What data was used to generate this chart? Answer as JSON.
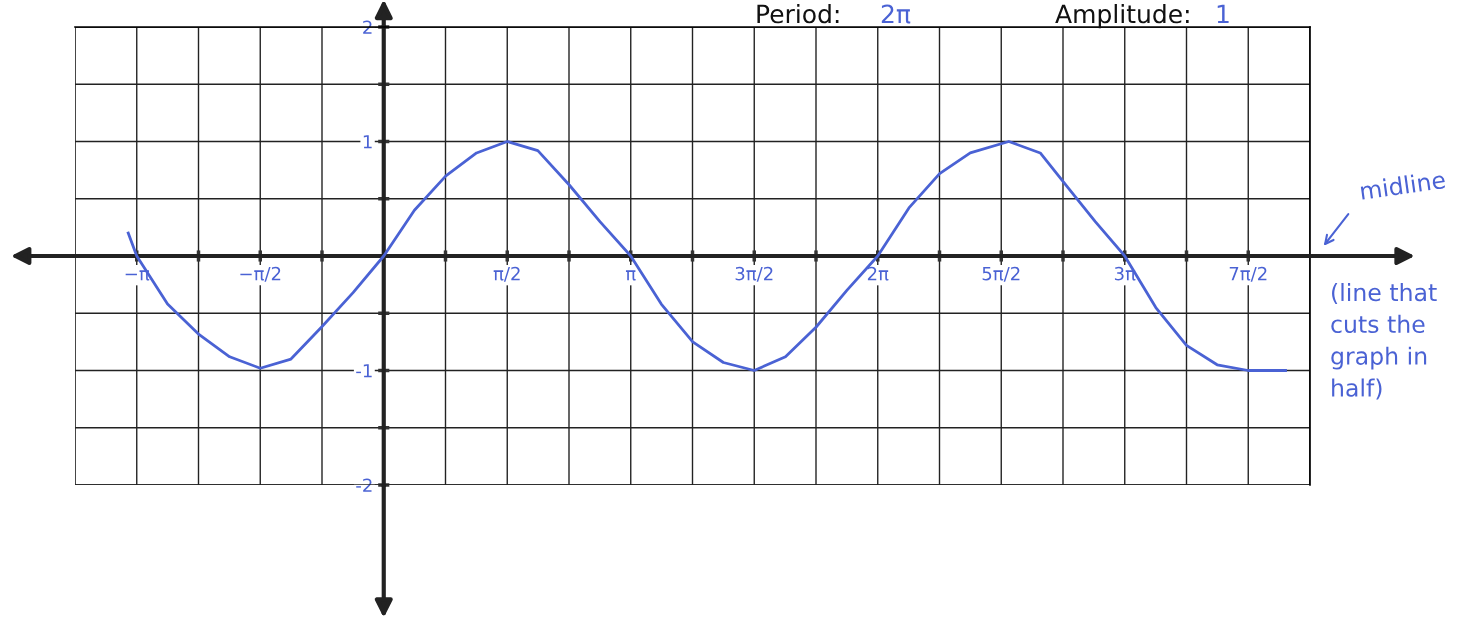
{
  "chart_data": {
    "type": "line",
    "x": [
      -3.25,
      -3.1416,
      -2.75,
      -2.36,
      -1.96,
      -1.5708,
      -1.18,
      -0.79,
      -0.39,
      0,
      0.39,
      0.79,
      1.18,
      1.5708,
      1.96,
      2.36,
      2.75,
      3.1416,
      3.53,
      3.93,
      4.32,
      4.7124,
      5.11,
      5.5,
      5.89,
      6.2832,
      6.68,
      7.07,
      7.46,
      7.95,
      8.35,
      8.7,
      9.05,
      9.4248,
      9.82,
      10.21,
      10.6,
      10.9956,
      11.47
    ],
    "series": [
      {
        "color": "#4a62d4",
        "values": [
          0.2,
          0,
          -0.42,
          -0.68,
          -0.88,
          -0.98,
          -0.9,
          -0.62,
          -0.32,
          0,
          0.4,
          0.7,
          0.9,
          1,
          0.92,
          0.62,
          0.3,
          0,
          -0.42,
          -0.75,
          -0.93,
          -1,
          -0.88,
          -0.62,
          -0.3,
          0,
          0.42,
          0.72,
          0.9,
          1,
          0.9,
          0.6,
          0.3,
          0,
          -0.45,
          -0.78,
          -0.95,
          -1,
          -1
        ]
      }
    ],
    "xlim": [
      -3.927,
      11.781
    ],
    "ylim": [
      -2,
      2
    ],
    "xticks": [
      {
        "value": -3.1416,
        "label": "−π"
      },
      {
        "value": -2.3562,
        "label": null
      },
      {
        "value": -1.5708,
        "label": "−π/2"
      },
      {
        "value": -0.7854,
        "label": null
      },
      {
        "value": 0.7854,
        "label": null
      },
      {
        "value": 1.5708,
        "label": "π/2"
      },
      {
        "value": 2.3562,
        "label": null
      },
      {
        "value": 3.1416,
        "label": "π"
      },
      {
        "value": 3.927,
        "label": null
      },
      {
        "value": 4.7124,
        "label": "3π/2"
      },
      {
        "value": 5.4978,
        "label": null
      },
      {
        "value": 6.2832,
        "label": "2π"
      },
      {
        "value": 7.0686,
        "label": null
      },
      {
        "value": 7.854,
        "label": "5π/2"
      },
      {
        "value": 8.6394,
        "label": null
      },
      {
        "value": 9.4248,
        "label": "3π"
      },
      {
        "value": 10.2102,
        "label": null
      },
      {
        "value": 10.9956,
        "label": "7π/2"
      }
    ],
    "yticks": [
      {
        "value": -2,
        "label": "-2"
      },
      {
        "value": -1.5,
        "label": null
      },
      {
        "value": -1,
        "label": "-1"
      },
      {
        "value": -0.5,
        "label": null
      },
      {
        "value": 0.5,
        "label": null
      },
      {
        "value": 1,
        "label": "1"
      },
      {
        "value": 1.5,
        "label": null
      },
      {
        "value": 2,
        "label": "2"
      }
    ],
    "grid": true,
    "line_style": "solid",
    "marker": "none",
    "annotations": [
      "Period:",
      "2π",
      "Amplitude:",
      "1",
      "midline",
      "(line that\ncuts the\ngraph in\nhalf)"
    ]
  }
}
